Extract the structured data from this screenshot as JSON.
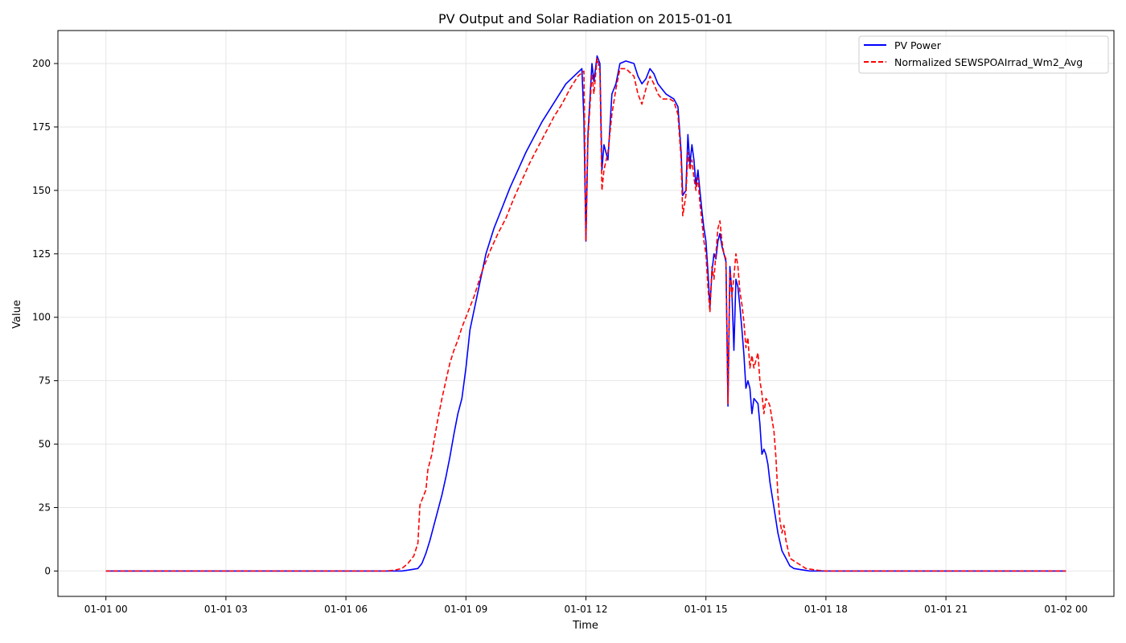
{
  "chart_data": {
    "type": "line",
    "title": "PV Output and Solar Radiation on 2015-01-01",
    "xlabel": "Time",
    "ylabel": "Value",
    "x_unit": "hours since 2015-01-01 00:00",
    "xlim": [
      -1.2,
      25.2
    ],
    "ylim": [
      -10,
      213
    ],
    "x_ticks": [
      0,
      3,
      6,
      9,
      12,
      15,
      18,
      21,
      24
    ],
    "x_tick_labels": [
      "01-01 00",
      "01-01 03",
      "01-01 06",
      "01-01 09",
      "01-01 12",
      "01-01 15",
      "01-01 18",
      "01-01 21",
      "01-02 00"
    ],
    "y_ticks": [
      0,
      25,
      50,
      75,
      100,
      125,
      150,
      175,
      200
    ],
    "y_tick_labels": [
      "0",
      "25",
      "50",
      "75",
      "100",
      "125",
      "150",
      "175",
      "200"
    ],
    "grid": true,
    "legend_position": "top-right",
    "series": [
      {
        "name": "PV Power",
        "color": "#0000ff",
        "style": "solid",
        "points": [
          [
            0,
            0
          ],
          [
            7,
            0
          ],
          [
            7.4,
            0
          ],
          [
            7.6,
            0.5
          ],
          [
            7.8,
            1
          ],
          [
            7.9,
            3
          ],
          [
            8.0,
            7
          ],
          [
            8.1,
            12
          ],
          [
            8.2,
            18
          ],
          [
            8.3,
            24
          ],
          [
            8.4,
            30
          ],
          [
            8.5,
            37
          ],
          [
            8.6,
            45
          ],
          [
            8.7,
            54
          ],
          [
            8.8,
            62
          ],
          [
            8.9,
            68
          ],
          [
            9.0,
            80
          ],
          [
            9.1,
            95
          ],
          [
            9.3,
            110
          ],
          [
            9.5,
            125
          ],
          [
            9.7,
            135
          ],
          [
            9.9,
            143
          ],
          [
            10.1,
            151
          ],
          [
            10.3,
            158
          ],
          [
            10.5,
            165
          ],
          [
            10.7,
            171
          ],
          [
            10.9,
            177
          ],
          [
            11.1,
            182
          ],
          [
            11.3,
            187
          ],
          [
            11.5,
            192
          ],
          [
            11.7,
            195
          ],
          [
            11.9,
            198
          ],
          [
            11.95,
            178
          ],
          [
            12.0,
            130
          ],
          [
            12.05,
            172
          ],
          [
            12.15,
            200
          ],
          [
            12.2,
            193
          ],
          [
            12.28,
            203
          ],
          [
            12.35,
            200
          ],
          [
            12.4,
            158
          ],
          [
            12.45,
            168
          ],
          [
            12.55,
            162
          ],
          [
            12.65,
            188
          ],
          [
            12.75,
            192
          ],
          [
            12.85,
            200
          ],
          [
            13.0,
            201
          ],
          [
            13.2,
            200
          ],
          [
            13.3,
            195
          ],
          [
            13.4,
            192
          ],
          [
            13.5,
            194
          ],
          [
            13.6,
            198
          ],
          [
            13.7,
            196
          ],
          [
            13.8,
            192
          ],
          [
            13.9,
            190
          ],
          [
            14.0,
            188
          ],
          [
            14.1,
            187
          ],
          [
            14.2,
            186
          ],
          [
            14.3,
            183
          ],
          [
            14.38,
            165
          ],
          [
            14.42,
            148
          ],
          [
            14.5,
            150
          ],
          [
            14.55,
            172
          ],
          [
            14.6,
            160
          ],
          [
            14.65,
            168
          ],
          [
            14.7,
            162
          ],
          [
            14.75,
            152
          ],
          [
            14.8,
            158
          ],
          [
            14.85,
            150
          ],
          [
            14.9,
            142
          ],
          [
            14.95,
            135
          ],
          [
            15.0,
            130
          ],
          [
            15.05,
            118
          ],
          [
            15.1,
            104
          ],
          [
            15.15,
            118
          ],
          [
            15.2,
            125
          ],
          [
            15.25,
            123
          ],
          [
            15.3,
            130
          ],
          [
            15.35,
            133
          ],
          [
            15.4,
            128
          ],
          [
            15.45,
            125
          ],
          [
            15.5,
            122
          ],
          [
            15.55,
            65
          ],
          [
            15.6,
            120
          ],
          [
            15.65,
            110
          ],
          [
            15.7,
            87
          ],
          [
            15.75,
            115
          ],
          [
            15.8,
            112
          ],
          [
            15.85,
            104
          ],
          [
            15.9,
            95
          ],
          [
            15.95,
            85
          ],
          [
            16.0,
            72
          ],
          [
            16.05,
            75
          ],
          [
            16.1,
            72
          ],
          [
            16.15,
            62
          ],
          [
            16.2,
            68
          ],
          [
            16.3,
            66
          ],
          [
            16.35,
            58
          ],
          [
            16.4,
            46
          ],
          [
            16.45,
            48
          ],
          [
            16.5,
            46
          ],
          [
            16.55,
            42
          ],
          [
            16.6,
            35
          ],
          [
            16.7,
            25
          ],
          [
            16.8,
            15
          ],
          [
            16.9,
            8
          ],
          [
            17.0,
            5
          ],
          [
            17.1,
            2
          ],
          [
            17.2,
            1
          ],
          [
            17.4,
            0.5
          ],
          [
            17.6,
            0
          ],
          [
            24,
            0
          ]
        ]
      },
      {
        "name": "Normalized SEWSPOAIrrad_Wm2_Avg",
        "color": "#ff0000",
        "style": "dashed",
        "points": [
          [
            0,
            0
          ],
          [
            7,
            0
          ],
          [
            7.2,
            0.3
          ],
          [
            7.4,
            1
          ],
          [
            7.55,
            3
          ],
          [
            7.7,
            6
          ],
          [
            7.8,
            11
          ],
          [
            7.85,
            26
          ],
          [
            7.9,
            28
          ],
          [
            8.0,
            32
          ],
          [
            8.05,
            40
          ],
          [
            8.15,
            46
          ],
          [
            8.2,
            51
          ],
          [
            8.3,
            60
          ],
          [
            8.4,
            68
          ],
          [
            8.5,
            75
          ],
          [
            8.6,
            82
          ],
          [
            8.7,
            87
          ],
          [
            8.8,
            91
          ],
          [
            8.9,
            96
          ],
          [
            9.0,
            100
          ],
          [
            9.2,
            108
          ],
          [
            9.4,
            118
          ],
          [
            9.6,
            126
          ],
          [
            9.8,
            133
          ],
          [
            10.0,
            139
          ],
          [
            10.2,
            147
          ],
          [
            10.4,
            154
          ],
          [
            10.6,
            161
          ],
          [
            10.8,
            167
          ],
          [
            11.0,
            173
          ],
          [
            11.2,
            179
          ],
          [
            11.4,
            184
          ],
          [
            11.6,
            190
          ],
          [
            11.8,
            195
          ],
          [
            11.95,
            197
          ],
          [
            12.0,
            130
          ],
          [
            12.05,
            170
          ],
          [
            12.15,
            196
          ],
          [
            12.2,
            188
          ],
          [
            12.28,
            202
          ],
          [
            12.35,
            197
          ],
          [
            12.4,
            150
          ],
          [
            12.45,
            158
          ],
          [
            12.55,
            165
          ],
          [
            12.65,
            180
          ],
          [
            12.75,
            190
          ],
          [
            12.85,
            198
          ],
          [
            13.0,
            198
          ],
          [
            13.2,
            195
          ],
          [
            13.3,
            188
          ],
          [
            13.4,
            184
          ],
          [
            13.5,
            190
          ],
          [
            13.6,
            195
          ],
          [
            13.7,
            192
          ],
          [
            13.8,
            188
          ],
          [
            13.9,
            186
          ],
          [
            14.0,
            186
          ],
          [
            14.1,
            186
          ],
          [
            14.2,
            185
          ],
          [
            14.3,
            180
          ],
          [
            14.38,
            162
          ],
          [
            14.42,
            140
          ],
          [
            14.5,
            148
          ],
          [
            14.55,
            165
          ],
          [
            14.6,
            158
          ],
          [
            14.65,
            162
          ],
          [
            14.7,
            155
          ],
          [
            14.75,
            150
          ],
          [
            14.8,
            155
          ],
          [
            14.85,
            145
          ],
          [
            14.9,
            138
          ],
          [
            14.95,
            130
          ],
          [
            15.0,
            125
          ],
          [
            15.05,
            112
          ],
          [
            15.1,
            102
          ],
          [
            15.15,
            120
          ],
          [
            15.2,
            115
          ],
          [
            15.25,
            125
          ],
          [
            15.3,
            135
          ],
          [
            15.35,
            138
          ],
          [
            15.4,
            130
          ],
          [
            15.45,
            125
          ],
          [
            15.5,
            123
          ],
          [
            15.55,
            66
          ],
          [
            15.6,
            118
          ],
          [
            15.65,
            108
          ],
          [
            15.7,
            116
          ],
          [
            15.75,
            125
          ],
          [
            15.8,
            120
          ],
          [
            15.85,
            110
          ],
          [
            15.9,
            105
          ],
          [
            15.95,
            98
          ],
          [
            16.0,
            88
          ],
          [
            16.05,
            92
          ],
          [
            16.1,
            80
          ],
          [
            16.15,
            85
          ],
          [
            16.2,
            80
          ],
          [
            16.3,
            86
          ],
          [
            16.35,
            75
          ],
          [
            16.4,
            70
          ],
          [
            16.45,
            62
          ],
          [
            16.5,
            68
          ],
          [
            16.55,
            67
          ],
          [
            16.6,
            65
          ],
          [
            16.7,
            55
          ],
          [
            16.75,
            45
          ],
          [
            16.8,
            30
          ],
          [
            16.85,
            20
          ],
          [
            16.9,
            15
          ],
          [
            16.95,
            18
          ],
          [
            17.0,
            12
          ],
          [
            17.1,
            5
          ],
          [
            17.3,
            3
          ],
          [
            17.5,
            1
          ],
          [
            17.8,
            0.3
          ],
          [
            18.0,
            0
          ],
          [
            24,
            0
          ]
        ]
      }
    ]
  }
}
